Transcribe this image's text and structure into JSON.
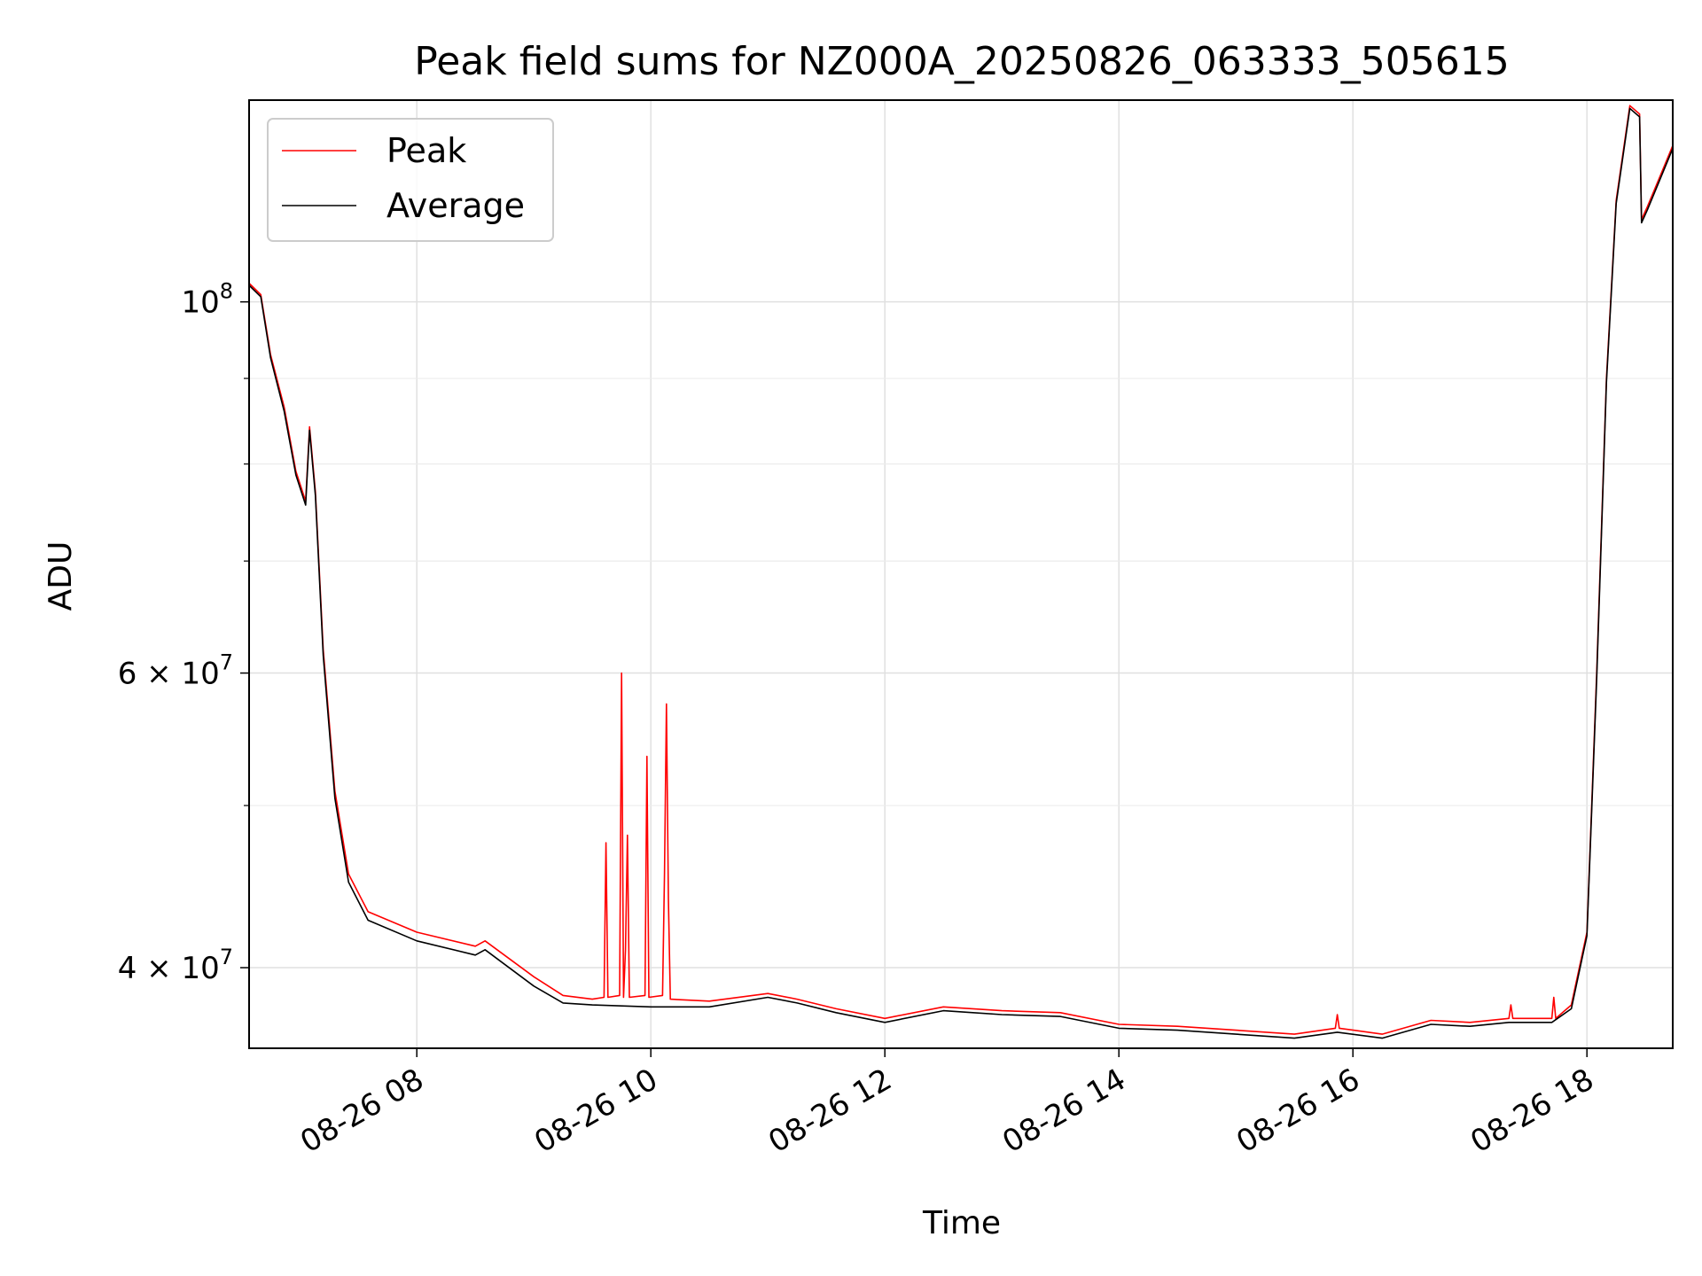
{
  "chart_data": {
    "type": "line",
    "title": "Peak field sums for NZ000A_20250826_063333_505615",
    "xlabel": "Time",
    "ylabel": "ADU",
    "yscale": "log",
    "grid": true,
    "legend_position": "top-left",
    "xlim": [
      "2025-08-26 06:34",
      "2025-08-26 18:44"
    ],
    "ylim": [
      35800000,
      132000000
    ],
    "x_ticks": [
      {
        "value": "2025-08-26 08:00",
        "label": "08-26 08"
      },
      {
        "value": "2025-08-26 10:00",
        "label": "08-26 10"
      },
      {
        "value": "2025-08-26 12:00",
        "label": "08-26 12"
      },
      {
        "value": "2025-08-26 14:00",
        "label": "08-26 14"
      },
      {
        "value": "2025-08-26 16:00",
        "label": "08-26 16"
      },
      {
        "value": "2025-08-26 18:00",
        "label": "08-26 18"
      }
    ],
    "y_major_ticks": [
      {
        "value": 40000000,
        "mant": "4",
        "exp": "7"
      },
      {
        "value": 60000000,
        "mant": "6",
        "exp": "7"
      },
      {
        "value": 100000000,
        "mant": "",
        "exp": "8"
      }
    ],
    "y_minor_ticks": [
      50000000,
      70000000,
      80000000,
      90000000
    ],
    "series": [
      {
        "name": "Peak",
        "color": "#ff0000",
        "points": [
          [
            "2025-08-26 06:34",
            102600000
          ],
          [
            "2025-08-26 06:40",
            101000000
          ],
          [
            "2025-08-26 06:45",
            93000000
          ],
          [
            "2025-08-26 06:52",
            86500000
          ],
          [
            "2025-08-26 06:58",
            79200000
          ],
          [
            "2025-08-26 07:03",
            76000000
          ],
          [
            "2025-08-26 07:05",
            84200000
          ],
          [
            "2025-08-26 07:08",
            77000000
          ],
          [
            "2025-08-26 07:12",
            62000000
          ],
          [
            "2025-08-26 07:18",
            51000000
          ],
          [
            "2025-08-26 07:25",
            45500000
          ],
          [
            "2025-08-26 07:35",
            43200000
          ],
          [
            "2025-08-26 08:00",
            42000000
          ],
          [
            "2025-08-26 08:30",
            41200000
          ],
          [
            "2025-08-26 08:35",
            41500000
          ],
          [
            "2025-08-26 09:00",
            39500000
          ],
          [
            "2025-08-26 09:15",
            38500000
          ],
          [
            "2025-08-26 09:30",
            38300000
          ],
          [
            "2025-08-26 09:36",
            38400000
          ],
          [
            "2025-08-26 09:37",
            47500000
          ],
          [
            "2025-08-26 09:38",
            38400000
          ],
          [
            "2025-08-26 09:44",
            38500000
          ],
          [
            "2025-08-26 09:45",
            60000000
          ],
          [
            "2025-08-26 09:46",
            38400000
          ],
          [
            "2025-08-26 09:47",
            41000000
          ],
          [
            "2025-08-26 09:48",
            48000000
          ],
          [
            "2025-08-26 09:49",
            38400000
          ],
          [
            "2025-08-26 09:57",
            38500000
          ],
          [
            "2025-08-26 09:58",
            53500000
          ],
          [
            "2025-08-26 09:59",
            38400000
          ],
          [
            "2025-08-26 10:06",
            38500000
          ],
          [
            "2025-08-26 10:07",
            45500000
          ],
          [
            "2025-08-26 10:08",
            57500000
          ],
          [
            "2025-08-26 10:09",
            44000000
          ],
          [
            "2025-08-26 10:10",
            38300000
          ],
          [
            "2025-08-26 10:30",
            38200000
          ],
          [
            "2025-08-26 11:00",
            38600000
          ],
          [
            "2025-08-26 11:15",
            38300000
          ],
          [
            "2025-08-26 11:35",
            37800000
          ],
          [
            "2025-08-26 12:00",
            37300000
          ],
          [
            "2025-08-26 12:30",
            37900000
          ],
          [
            "2025-08-26 13:00",
            37700000
          ],
          [
            "2025-08-26 13:30",
            37600000
          ],
          [
            "2025-08-26 14:00",
            37000000
          ],
          [
            "2025-08-26 14:30",
            36900000
          ],
          [
            "2025-08-26 15:00",
            36700000
          ],
          [
            "2025-08-26 15:30",
            36500000
          ],
          [
            "2025-08-26 15:51",
            36800000
          ],
          [
            "2025-08-26 15:52",
            37500000
          ],
          [
            "2025-08-26 15:53",
            36800000
          ],
          [
            "2025-08-26 16:15",
            36500000
          ],
          [
            "2025-08-26 16:40",
            37200000
          ],
          [
            "2025-08-26 17:00",
            37100000
          ],
          [
            "2025-08-26 17:20",
            37300000
          ],
          [
            "2025-08-26 17:21",
            38000000
          ],
          [
            "2025-08-26 17:22",
            37300000
          ],
          [
            "2025-08-26 17:42",
            37300000
          ],
          [
            "2025-08-26 17:43",
            38400000
          ],
          [
            "2025-08-26 17:44",
            37300000
          ],
          [
            "2025-08-26 17:52",
            38000000
          ],
          [
            "2025-08-26 18:00",
            42000000
          ],
          [
            "2025-08-26 18:05",
            60000000
          ],
          [
            "2025-08-26 18:10",
            90000000
          ],
          [
            "2025-08-26 18:15",
            115000000
          ],
          [
            "2025-08-26 18:22",
            131000000
          ],
          [
            "2025-08-26 18:27",
            129500000
          ],
          [
            "2025-08-26 18:28",
            112000000
          ],
          [
            "2025-08-26 18:31",
            114000000
          ],
          [
            "2025-08-26 18:37",
            118500000
          ],
          [
            "2025-08-26 18:44",
            124000000
          ]
        ]
      },
      {
        "name": "Average",
        "color": "#000000",
        "points": [
          [
            "2025-08-26 06:34",
            102300000
          ],
          [
            "2025-08-26 06:40",
            100700000
          ],
          [
            "2025-08-26 06:45",
            92600000
          ],
          [
            "2025-08-26 06:52",
            86000000
          ],
          [
            "2025-08-26 06:58",
            78800000
          ],
          [
            "2025-08-26 07:03",
            75600000
          ],
          [
            "2025-08-26 07:05",
            83800000
          ],
          [
            "2025-08-26 07:08",
            76600000
          ],
          [
            "2025-08-26 07:12",
            61500000
          ],
          [
            "2025-08-26 07:18",
            50500000
          ],
          [
            "2025-08-26 07:25",
            45000000
          ],
          [
            "2025-08-26 07:35",
            42700000
          ],
          [
            "2025-08-26 08:00",
            41500000
          ],
          [
            "2025-08-26 08:30",
            40700000
          ],
          [
            "2025-08-26 08:35",
            41000000
          ],
          [
            "2025-08-26 09:00",
            39000000
          ],
          [
            "2025-08-26 09:15",
            38100000
          ],
          [
            "2025-08-26 09:30",
            38000000
          ],
          [
            "2025-08-26 10:00",
            37900000
          ],
          [
            "2025-08-26 10:30",
            37900000
          ],
          [
            "2025-08-26 11:00",
            38400000
          ],
          [
            "2025-08-26 11:15",
            38100000
          ],
          [
            "2025-08-26 11:35",
            37600000
          ],
          [
            "2025-08-26 12:00",
            37100000
          ],
          [
            "2025-08-26 12:30",
            37700000
          ],
          [
            "2025-08-26 13:00",
            37500000
          ],
          [
            "2025-08-26 13:30",
            37400000
          ],
          [
            "2025-08-26 14:00",
            36800000
          ],
          [
            "2025-08-26 14:30",
            36700000
          ],
          [
            "2025-08-26 15:00",
            36500000
          ],
          [
            "2025-08-26 15:30",
            36300000
          ],
          [
            "2025-08-26 15:52",
            36600000
          ],
          [
            "2025-08-26 16:15",
            36300000
          ],
          [
            "2025-08-26 16:40",
            37000000
          ],
          [
            "2025-08-26 17:00",
            36900000
          ],
          [
            "2025-08-26 17:20",
            37100000
          ],
          [
            "2025-08-26 17:42",
            37100000
          ],
          [
            "2025-08-26 17:52",
            37800000
          ],
          [
            "2025-08-26 18:00",
            41800000
          ],
          [
            "2025-08-26 18:05",
            59500000
          ],
          [
            "2025-08-26 18:10",
            89500000
          ],
          [
            "2025-08-26 18:15",
            114500000
          ],
          [
            "2025-08-26 18:22",
            130500000
          ],
          [
            "2025-08-26 18:27",
            129000000
          ],
          [
            "2025-08-26 18:28",
            111500000
          ],
          [
            "2025-08-26 18:31",
            113500000
          ],
          [
            "2025-08-26 18:37",
            118000000
          ],
          [
            "2025-08-26 18:44",
            123500000
          ]
        ]
      }
    ]
  }
}
